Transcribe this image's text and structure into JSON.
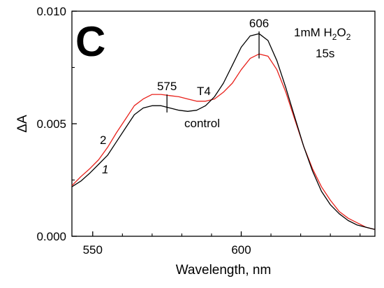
{
  "chart_data": {
    "type": "line",
    "panel_label": "C",
    "xlabel": "Wavelength, nm",
    "ylabel": "ΔA",
    "xlim": [
      543,
      645
    ],
    "ylim": [
      0,
      0.01
    ],
    "x_ticks": [
      550,
      600
    ],
    "x_tick_labels": [
      "550",
      "600"
    ],
    "y_ticks": [
      0,
      0.005,
      0.01
    ],
    "y_tick_labels": [
      "0.000",
      "0.005",
      "0.010"
    ],
    "grid": false,
    "condition_lines": [
      "1mM H",
      "2",
      "O",
      "2",
      "15s"
    ],
    "series": [
      {
        "name": "T4",
        "curve_number": "2",
        "color": "#e8201a",
        "x": [
          543,
          546,
          549,
          552,
          555,
          558,
          561,
          564,
          567,
          570,
          573,
          576,
          579,
          582,
          585,
          588,
          591,
          594,
          597,
          600,
          603,
          606,
          609,
          612,
          615,
          618,
          621,
          624,
          627,
          630,
          633,
          636,
          639,
          642,
          645
        ],
        "y": [
          0.00225,
          0.00265,
          0.003,
          0.0034,
          0.00395,
          0.0046,
          0.0052,
          0.0058,
          0.0061,
          0.0063,
          0.0063,
          0.00625,
          0.0062,
          0.0061,
          0.006,
          0.006,
          0.0061,
          0.0064,
          0.0068,
          0.0074,
          0.0079,
          0.0081,
          0.008,
          0.0074,
          0.0064,
          0.0052,
          0.004,
          0.003,
          0.0022,
          0.0016,
          0.0011,
          0.0008,
          0.0006,
          0.0004,
          0.0003
        ]
      },
      {
        "name": "control",
        "curve_number": "1",
        "color": "#000000",
        "x": [
          543,
          546,
          549,
          552,
          555,
          558,
          561,
          564,
          567,
          570,
          573,
          576,
          579,
          582,
          585,
          588,
          591,
          594,
          597,
          600,
          603,
          606,
          609,
          612,
          615,
          618,
          621,
          624,
          627,
          630,
          633,
          636,
          639,
          642,
          645
        ],
        "y": [
          0.0022,
          0.00245,
          0.0028,
          0.0032,
          0.0036,
          0.0042,
          0.0048,
          0.0054,
          0.0057,
          0.0058,
          0.0058,
          0.0057,
          0.0056,
          0.00555,
          0.0056,
          0.0058,
          0.0062,
          0.0068,
          0.0076,
          0.0084,
          0.0089,
          0.009,
          0.0087,
          0.0078,
          0.0066,
          0.0053,
          0.004,
          0.0029,
          0.002,
          0.0014,
          0.001,
          0.0007,
          0.0005,
          0.0004,
          0.0003
        ]
      }
    ],
    "annotations": [
      {
        "text": "575",
        "x": 575,
        "y_low": 0.0055,
        "y_high": 0.0063
      },
      {
        "text": "606",
        "x": 606,
        "y_low": 0.0079,
        "y_high": 0.0091
      }
    ]
  }
}
